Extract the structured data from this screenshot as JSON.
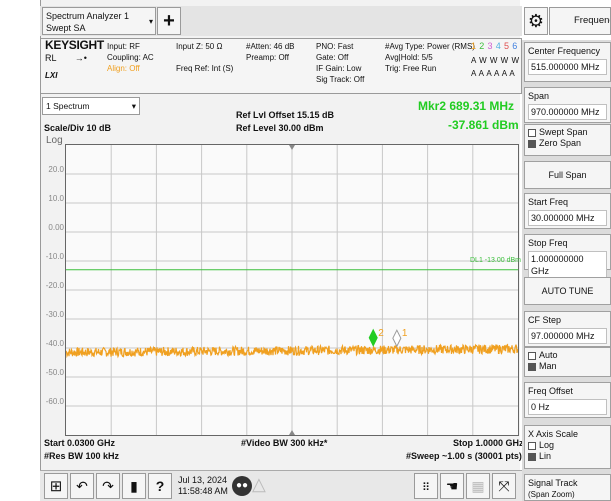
{
  "window": {
    "title_line1": "Spectrum Analyzer 1",
    "title_line2": "Swept SA"
  },
  "right_header": {
    "title": "Frequency"
  },
  "settings": {
    "brand": "KEYSIGHT",
    "rl": "RL",
    "lxi": "LXI",
    "input": "Input: RF",
    "coupling": "Coupling: AC",
    "align": "Align: Off",
    "input_z": "Input Z: 50 Ω",
    "freq_ref": "Freq Ref: Int (S)",
    "atten": "#Atten: 46 dB",
    "preamp": "Preamp: Off",
    "pno": "PNO: Fast",
    "gate": "Gate: Off",
    "if_gain": "IF Gain: Low",
    "sig_track": "Sig Track: Off",
    "avg_type": "#Avg Type: Power (RMS)",
    "avg_hold": "Avg|Hold: 5/5",
    "trig": "Trig: Free Run",
    "trace_nums": [
      "1",
      "2",
      "3",
      "4",
      "5",
      "6"
    ],
    "trace_types": "A W W W W W",
    "trace_dets": "A A A A A A"
  },
  "trace_selector": {
    "label": "1 Spectrum"
  },
  "scale": {
    "scale_div": "Scale/Div 10 dB",
    "log": "Log"
  },
  "ref": {
    "offset": "Ref Lvl Offset 15.15 dB",
    "level": "Ref Level 30.00 dBm"
  },
  "marker": {
    "label": "Mkr2  689.31 MHz",
    "value": "-37.861 dBm"
  },
  "y_ticks": [
    "20.0",
    "10.0",
    "0.00",
    "-10.0",
    "-20.0",
    "-30.0",
    "-40.0",
    "-50.0",
    "-60.0"
  ],
  "limit_line": {
    "label": "DL1 -13.00 dBm",
    "value_dbm": -13
  },
  "markers_on_plot": [
    {
      "id": "2",
      "freq_mhz": 689.31,
      "level_dbm": -37.861,
      "active": true
    },
    {
      "id": "1",
      "freq_mhz": 740,
      "level_dbm": -38,
      "active": false
    }
  ],
  "bottom": {
    "start": "Start 0.0300 GHz",
    "res_bw": "#Res BW 100 kHz",
    "video_bw": "#Video BW 300 kHz*",
    "stop": "Stop 1.0000 GHz",
    "sweep": "#Sweep ~1.00 s (30001 pts)"
  },
  "right_panel": {
    "center_freq": {
      "label": "Center Frequency",
      "value": "515.000000 MHz"
    },
    "span": {
      "label": "Span",
      "value": "970.000000 MHz"
    },
    "swept_span": "Swept Span",
    "zero_span": "Zero Span",
    "full_span": "Full Span",
    "start_freq": {
      "label": "Start Freq",
      "value": "30.000000 MHz"
    },
    "stop_freq": {
      "label": "Stop Freq",
      "value": "1.000000000 GHz"
    },
    "auto_tune": "AUTO TUNE",
    "cf_step": {
      "label": "CF Step",
      "value": "97.000000 MHz"
    },
    "auto": "Auto",
    "man": "Man",
    "freq_offset": {
      "label": "Freq Offset",
      "value": "0 Hz"
    },
    "x_axis_scale": "X Axis Scale",
    "log": "Log",
    "lin": "Lin",
    "signal_track": "Signal Track",
    "span_zoom": "(Span Zoom)"
  },
  "taskbar": {
    "date": "Jul 13, 2024",
    "time": "11:58:48 AM"
  },
  "colors": {
    "trace": "#f0a020",
    "marker_active": "#22cc22",
    "limit": "#3cbf3c",
    "grid": "#c8c8c8"
  }
}
